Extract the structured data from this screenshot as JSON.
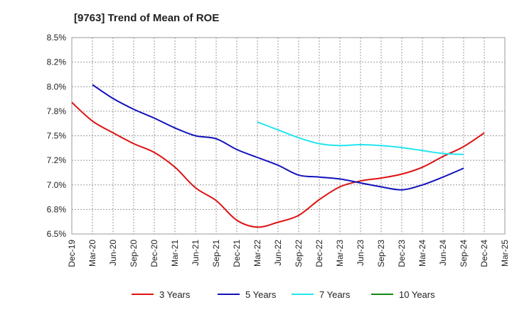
{
  "chart_data": {
    "type": "line",
    "title": "[9763]  Trend of Mean of ROE",
    "xlabel": "",
    "ylabel": "",
    "x_ticks": [
      "Dec-19",
      "Mar-20",
      "Jun-20",
      "Sep-20",
      "Dec-20",
      "Mar-21",
      "Jun-21",
      "Sep-21",
      "Dec-21",
      "Mar-22",
      "Jun-22",
      "Sep-22",
      "Dec-22",
      "Mar-23",
      "Jun-23",
      "Sep-23",
      "Dec-23",
      "Mar-24",
      "Jun-24",
      "Sep-24",
      "Dec-24",
      "Mar-25"
    ],
    "y_ticks": [
      "6.5%",
      "6.8%",
      "7.0%",
      "7.2%",
      "7.5%",
      "7.8%",
      "8.0%",
      "8.2%",
      "8.5%"
    ],
    "ylim": [
      6.5,
      8.5
    ],
    "grid": true,
    "legend_position": "bottom",
    "series": [
      {
        "name": "3 Years",
        "color": "#dd1111",
        "start_index": 0,
        "values": [
          7.84,
          7.65,
          7.53,
          7.42,
          7.33,
          7.18,
          6.97,
          6.84,
          6.64,
          6.57,
          6.62,
          6.69,
          6.85,
          6.98,
          7.04,
          7.07,
          7.11,
          7.18,
          7.29,
          7.39,
          7.53
        ]
      },
      {
        "name": "5 Years",
        "color": "#1111bb",
        "start_index": 1,
        "values": [
          8.02,
          7.88,
          7.77,
          7.68,
          7.58,
          7.5,
          7.47,
          7.36,
          7.28,
          7.2,
          7.1,
          7.08,
          7.06,
          7.02,
          6.98,
          6.95,
          7.0,
          7.08,
          7.17
        ]
      },
      {
        "name": "7 Years",
        "color": "#22e5ee",
        "start_index": 9,
        "values": [
          7.64,
          7.56,
          7.48,
          7.42,
          7.4,
          7.41,
          7.4,
          7.38,
          7.35,
          7.32,
          7.31
        ]
      },
      {
        "name": "10 Years",
        "color": "#118811",
        "start_index": 0,
        "values": []
      }
    ]
  }
}
